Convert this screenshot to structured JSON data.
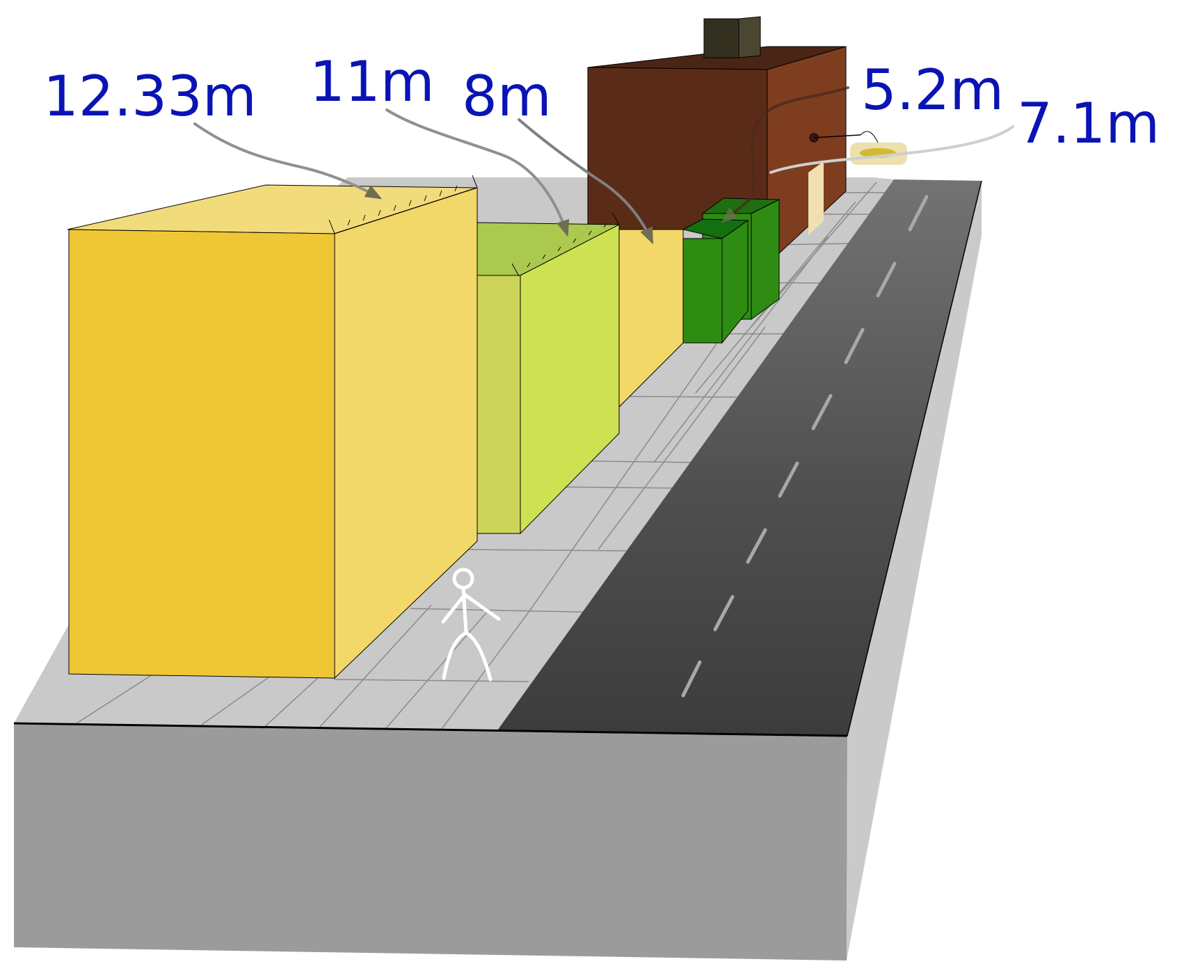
{
  "labels": {
    "height_a": "12.33m",
    "height_b": "11m",
    "height_c": "8m",
    "height_d": "5.2m",
    "height_e": "7.1m"
  },
  "colors": {
    "label_text": "#0a14b4",
    "building_yellow_front": "#efc734",
    "building_yellow_side": "#f2d769",
    "building_lime_side": "#cde152",
    "building_green": "#2f8c13",
    "building_brown": "#5a2c18",
    "road": "#444444",
    "sidewalk": "#c9c9c9",
    "base": "#9b9b9b"
  }
}
